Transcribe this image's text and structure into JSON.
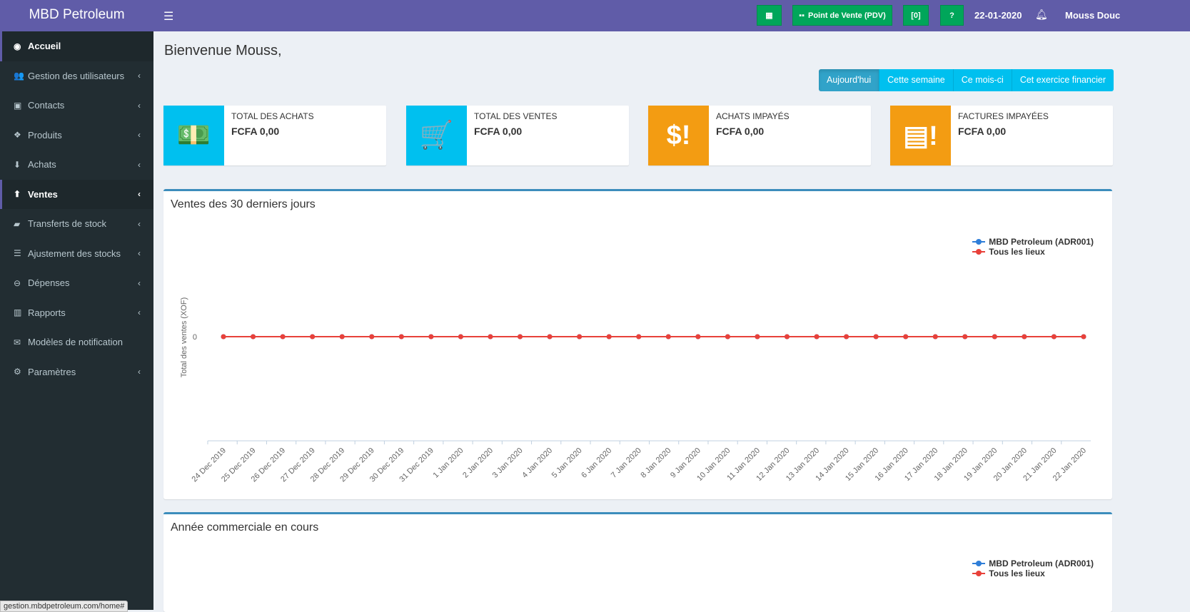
{
  "app": {
    "title": "MBD Petroleum"
  },
  "topbar": {
    "pos_label": "Point de Vente (PDV)",
    "date": "22-01-2020",
    "user": "Mouss Douc"
  },
  "sidebar": {
    "items": [
      {
        "label": "Accueil",
        "icon": "dashboard-icon",
        "glyph": "◉",
        "chev": false,
        "active": true
      },
      {
        "label": "Gestion des utilisateurs",
        "icon": "users-icon",
        "glyph": "👥",
        "chev": true
      },
      {
        "label": "Contacts",
        "icon": "address-book-icon",
        "glyph": "▣",
        "chev": true
      },
      {
        "label": "Produits",
        "icon": "cubes-icon",
        "glyph": "❖",
        "chev": true
      },
      {
        "label": "Achats",
        "icon": "arrow-circle-down-icon",
        "glyph": "⬇",
        "chev": true
      },
      {
        "label": "Ventes",
        "icon": "arrow-circle-up-icon",
        "glyph": "⬆",
        "chev": true,
        "active": true
      },
      {
        "label": "Transferts de stock",
        "icon": "truck-icon",
        "glyph": "▰",
        "chev": true
      },
      {
        "label": "Ajustement des stocks",
        "icon": "database-icon",
        "glyph": "☰",
        "chev": true
      },
      {
        "label": "Dépenses",
        "icon": "minus-circle-icon",
        "glyph": "⊖",
        "chev": true
      },
      {
        "label": "Rapports",
        "icon": "bar-chart-icon",
        "glyph": "▥",
        "chev": true
      },
      {
        "label": "Modèles de notification",
        "icon": "envelope-icon",
        "glyph": "✉",
        "chev": false
      },
      {
        "label": "Paramètres",
        "icon": "cog-icon",
        "glyph": "⚙",
        "chev": true
      }
    ]
  },
  "main": {
    "welcome": "Bienvenue Mouss,",
    "ranges": [
      "Aujourd'hui",
      "Cette semaine",
      "Ce mois-ci",
      "Cet exercice financier"
    ],
    "cards": [
      {
        "label": "TOTAL DES ACHATS",
        "value": "FCFA 0,00",
        "color": "#00c0ef",
        "icon": "money-icon",
        "glyph": "💵"
      },
      {
        "label": "TOTAL DES VENTES",
        "value": "FCFA 0,00",
        "color": "#00c0ef",
        "icon": "shopping-cart-icon",
        "glyph": "🛒"
      },
      {
        "label": "ACHATS IMPAYÉS",
        "value": "FCFA 0,00",
        "color": "#f39c12",
        "icon": "dollar-exclamation-icon",
        "glyph": "$!"
      },
      {
        "label": "FACTURES IMPAYÉES",
        "value": "FCFA 0,00",
        "color": "#f39c12",
        "icon": "invoice-exclamation-icon",
        "glyph": "▤!"
      }
    ],
    "second_box_title": "Année commerciale en cours",
    "status_url": "gestion.mbdpetroleum.com/home#"
  },
  "chart_data": {
    "type": "line",
    "title": "Ventes des 30 derniers jours",
    "ylabel": "Total des ventes (XOF)",
    "xlabel": "",
    "legend_placement": "top-right",
    "grid": false,
    "categories": [
      "24 Dec 2019",
      "25 Dec 2019",
      "26 Dec 2019",
      "27 Dec 2019",
      "28 Dec 2019",
      "29 Dec 2019",
      "30 Dec 2019",
      "31 Dec 2019",
      "1 Jan 2020",
      "2 Jan 2020",
      "3 Jan 2020",
      "4 Jan 2020",
      "5 Jan 2020",
      "6 Jan 2020",
      "7 Jan 2020",
      "8 Jan 2020",
      "9 Jan 2020",
      "10 Jan 2020",
      "11 Jan 2020",
      "12 Jan 2020",
      "13 Jan 2020",
      "14 Jan 2020",
      "15 Jan 2020",
      "16 Jan 2020",
      "17 Jan 2020",
      "18 Jan 2020",
      "19 Jan 2020",
      "20 Jan 2020",
      "21 Jan 2020",
      "22 Jan 2020"
    ],
    "yticks": [
      "0"
    ],
    "series": [
      {
        "name": "MBD Petroleum (ADR001)",
        "color": "#2f7ed8",
        "values": [
          0,
          0,
          0,
          0,
          0,
          0,
          0,
          0,
          0,
          0,
          0,
          0,
          0,
          0,
          0,
          0,
          0,
          0,
          0,
          0,
          0,
          0,
          0,
          0,
          0,
          0,
          0,
          0,
          0,
          0
        ]
      },
      {
        "name": "Tous les lieux",
        "color": "#e8413a",
        "values": [
          0,
          0,
          0,
          0,
          0,
          0,
          0,
          0,
          0,
          0,
          0,
          0,
          0,
          0,
          0,
          0,
          0,
          0,
          0,
          0,
          0,
          0,
          0,
          0,
          0,
          0,
          0,
          0,
          0,
          0
        ]
      }
    ]
  }
}
